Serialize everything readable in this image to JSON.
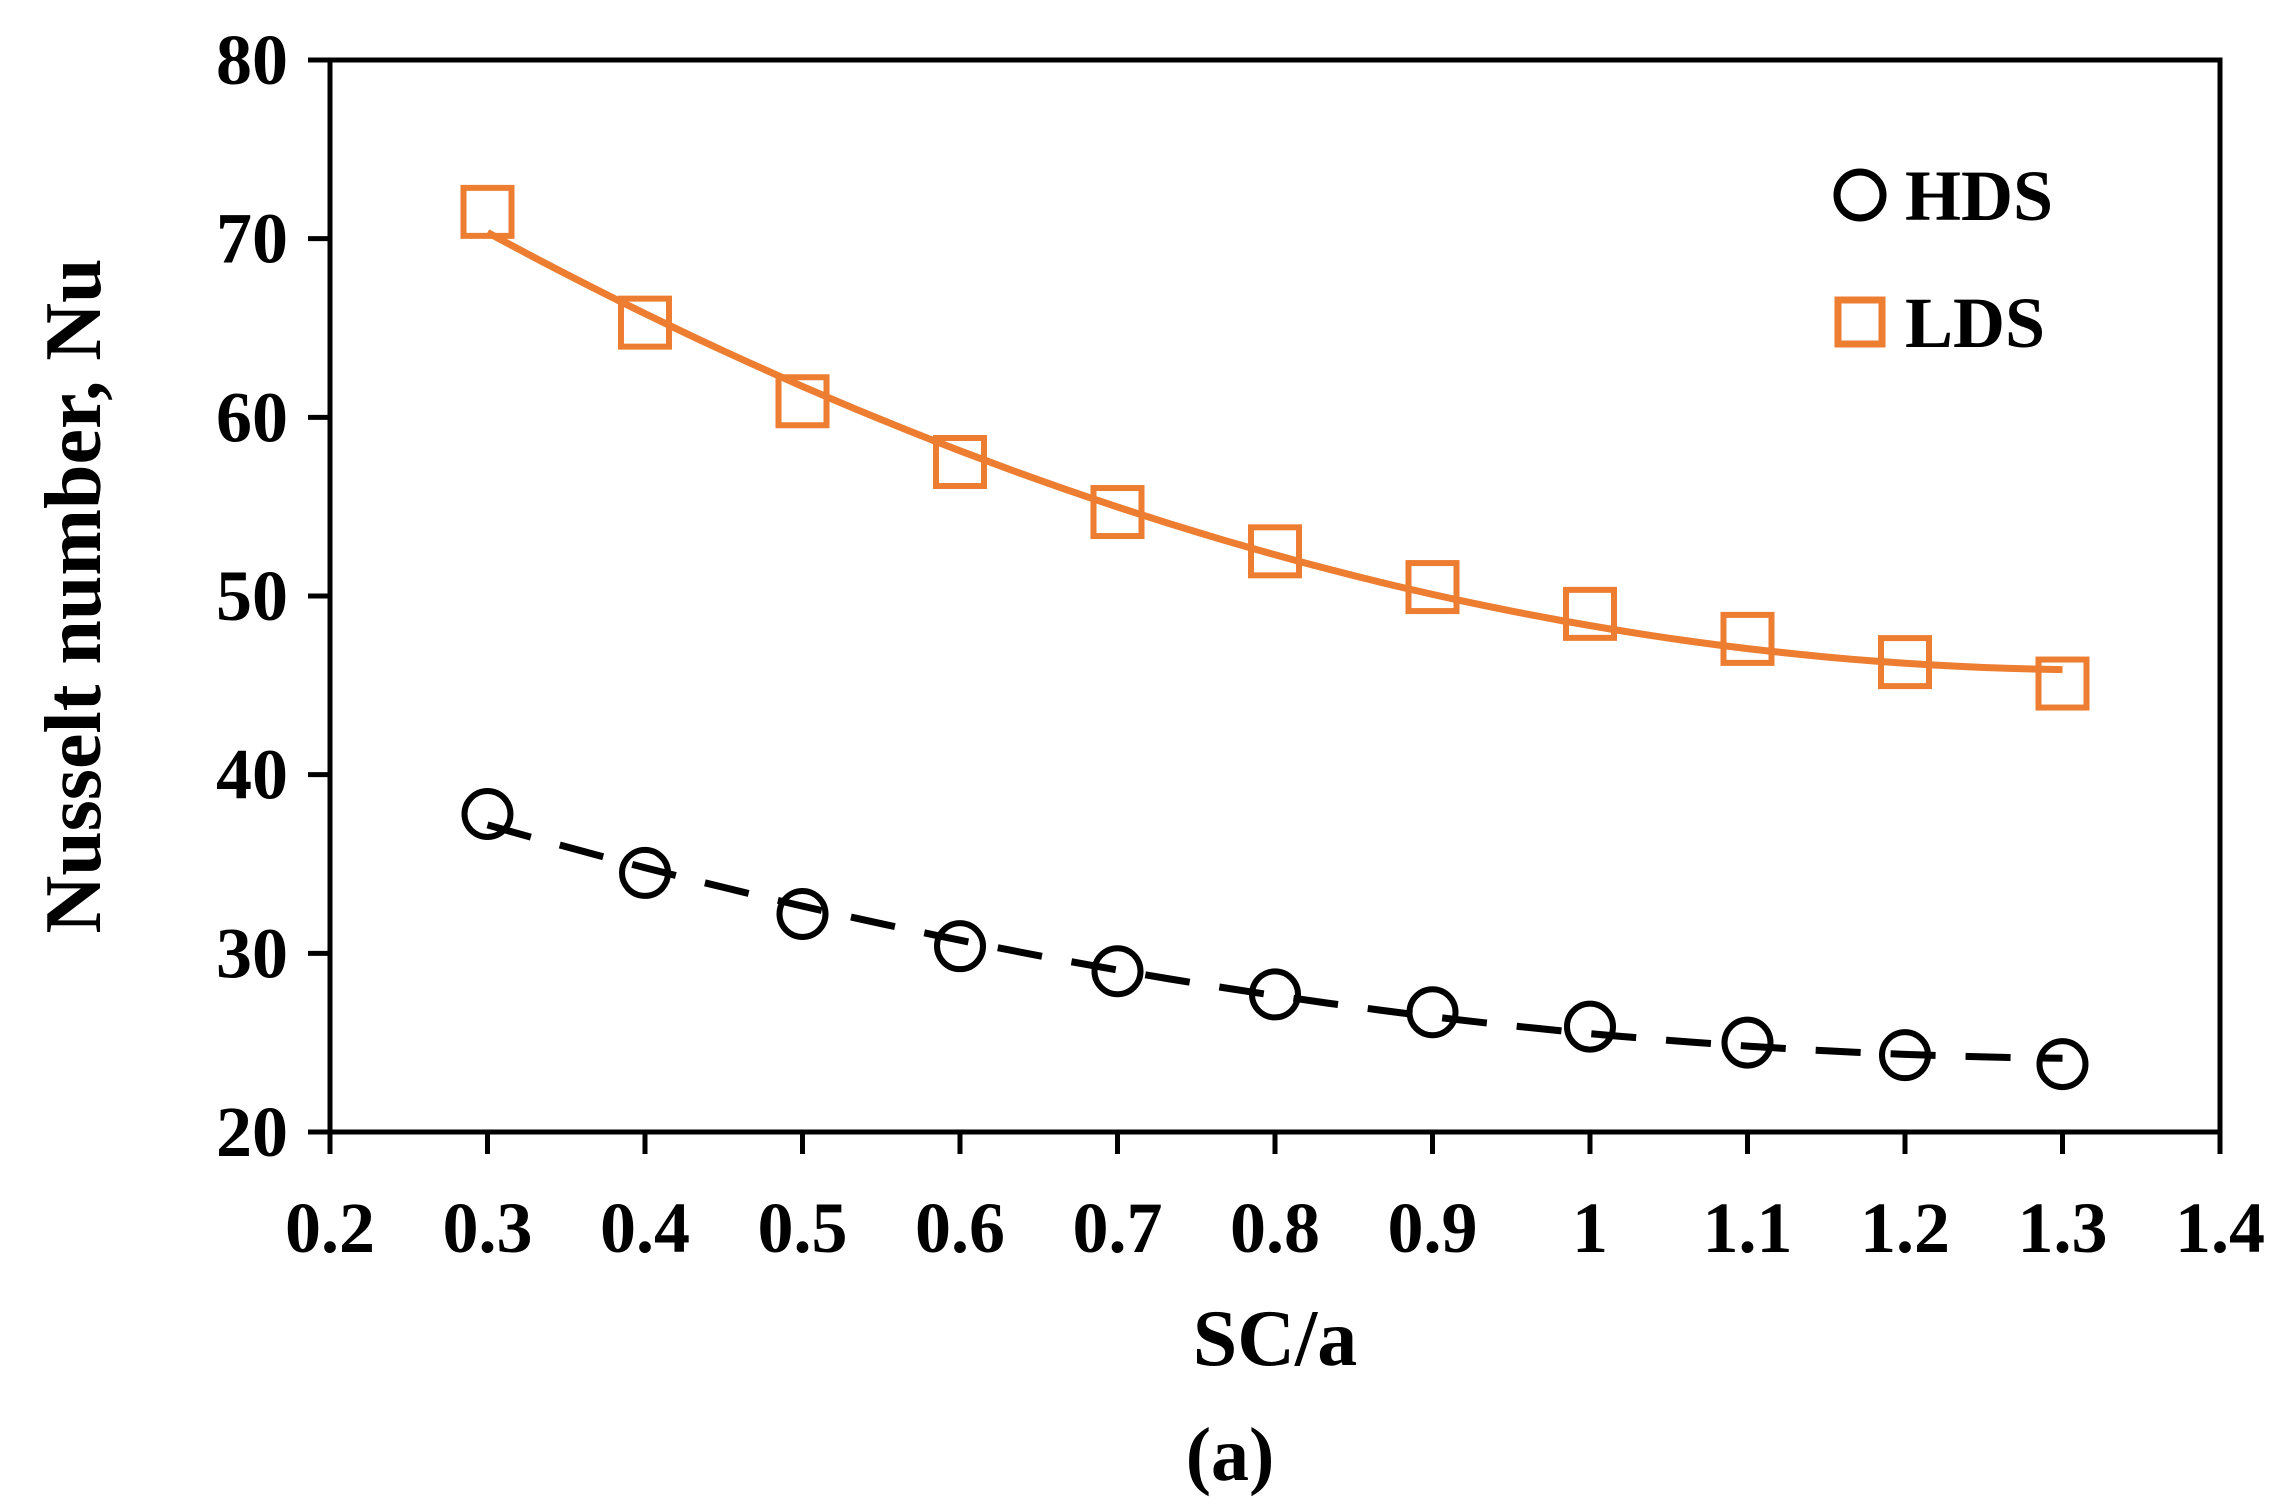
{
  "chart_data": {
    "type": "scatter",
    "title": "",
    "xlabel": "SC/a",
    "ylabel": "Nusselt number, Nu",
    "caption": "(a)",
    "xlim": [
      0.2,
      1.4
    ],
    "ylim": [
      20,
      80
    ],
    "x_ticks": [
      0.2,
      0.3,
      0.4,
      0.5,
      0.6,
      0.7,
      0.8,
      0.9,
      1,
      1.1,
      1.2,
      1.3,
      1.4
    ],
    "x_tick_labels": [
      "0.2",
      "0.3",
      "0.4",
      "0.5",
      "0.6",
      "0.7",
      "0.8",
      "0.9",
      "1",
      "1.1",
      "1.2",
      "1.3",
      "1.4"
    ],
    "y_ticks": [
      20,
      30,
      40,
      50,
      60,
      70,
      80
    ],
    "y_tick_labels": [
      "20",
      "30",
      "40",
      "50",
      "60",
      "70",
      "80"
    ],
    "legend_position": "top-right",
    "grid": false,
    "x": [
      0.3,
      0.4,
      0.5,
      0.6,
      0.7,
      0.8,
      0.9,
      1.0,
      1.1,
      1.2,
      1.3
    ],
    "series": [
      {
        "name": "HDS",
        "marker": "circle",
        "line": "dashed trendline",
        "color": "#000000",
        "values": [
          37.8,
          34.5,
          32.2,
          30.4,
          29.0,
          27.7,
          26.7,
          25.9,
          25.0,
          24.3,
          23.8
        ]
      },
      {
        "name": "LDS",
        "marker": "square",
        "line": "solid trendline",
        "color": "#ED7D31",
        "values": [
          71.5,
          65.3,
          60.9,
          57.5,
          54.7,
          52.5,
          50.5,
          49.0,
          47.6,
          46.3,
          45.1
        ]
      }
    ]
  }
}
